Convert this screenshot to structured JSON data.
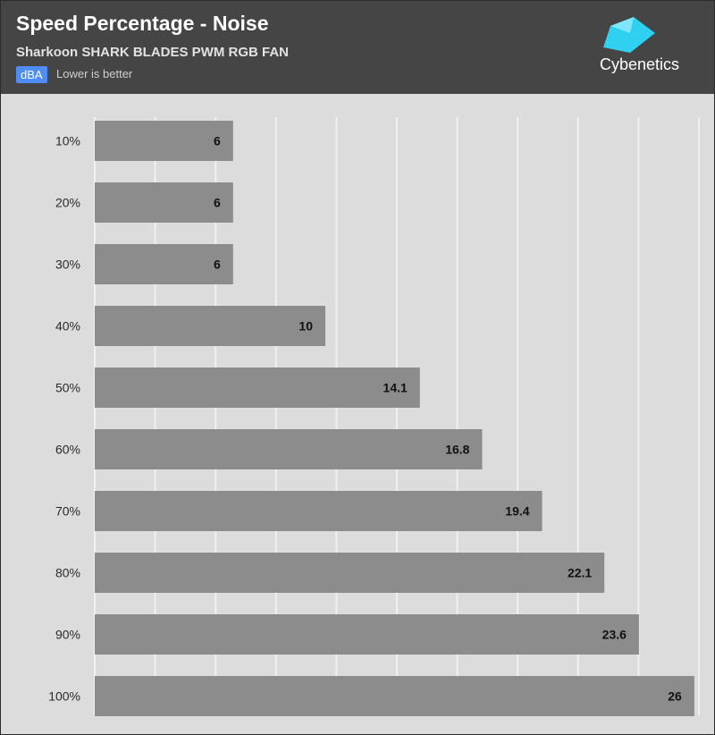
{
  "header": {
    "title": "Speed Percentage - Noise",
    "subtitle": "Sharkoon SHARK BLADES PWM RGB FAN",
    "unit": "dBA",
    "note": "Lower is better",
    "logo_text": "Cybenetics"
  },
  "colors": {
    "header_bg": "#454545",
    "plot_bg": "#dcdcdc",
    "bar": "#8c8c8c",
    "grid": "#f0f0f0",
    "badge": "#4d8df5",
    "logo_accent": "#2fd0f0"
  },
  "chart_data": {
    "type": "bar",
    "orientation": "horizontal",
    "categories": [
      "10%",
      "20%",
      "30%",
      "40%",
      "50%",
      "60%",
      "70%",
      "80%",
      "90%",
      "100%"
    ],
    "values": [
      6,
      6,
      6,
      10,
      14.1,
      16.8,
      19.4,
      22.1,
      23.6,
      26
    ],
    "xlim": [
      0,
      26.2
    ],
    "grid": true,
    "ylabel": "",
    "xlabel": ""
  }
}
